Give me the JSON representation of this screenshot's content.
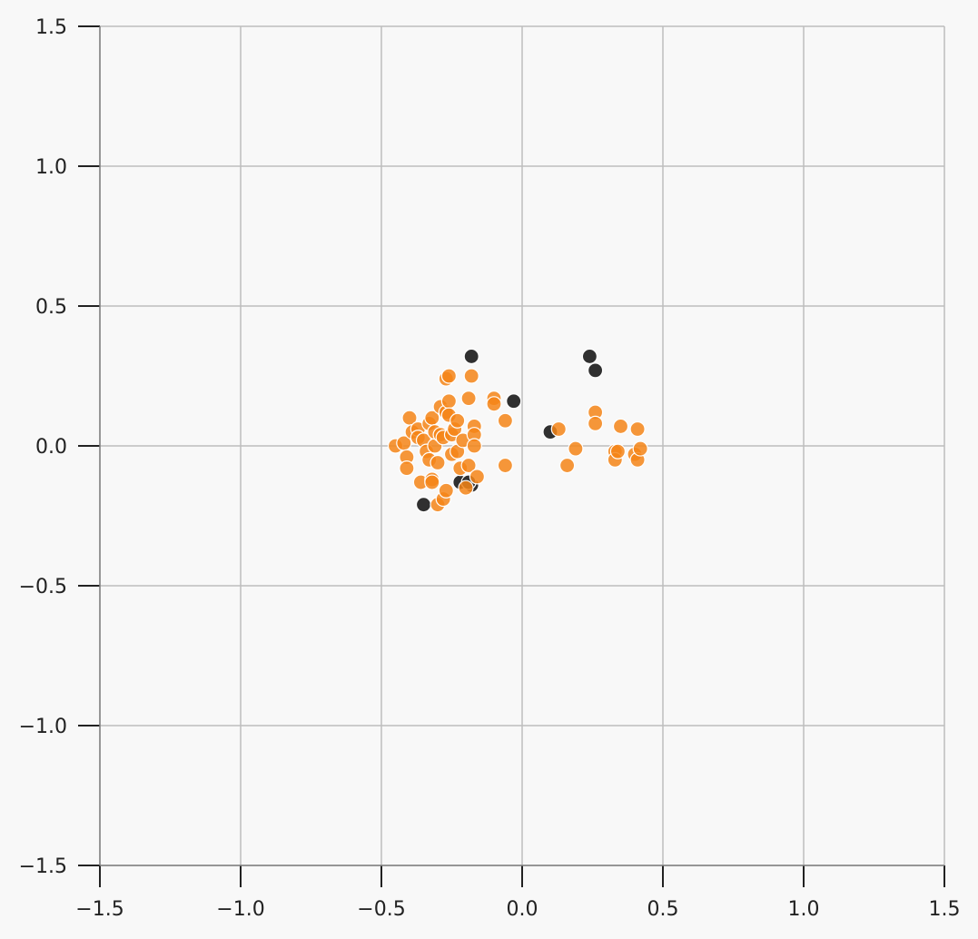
{
  "chart_data": {
    "type": "scatter",
    "title": "",
    "xlabel": "",
    "ylabel": "",
    "xlim": [
      -1.5,
      1.5
    ],
    "ylim": [
      -1.5,
      1.5
    ],
    "grid": true,
    "legend": "none",
    "x_ticks": [
      "−1.5",
      "−1.0",
      "−0.5",
      "0.0",
      "0.5",
      "1.0",
      "1.5"
    ],
    "y_ticks": [
      "−1.5",
      "−1.0",
      "−0.5",
      "0.0",
      "0.5",
      "1.0",
      "1.5"
    ],
    "series": [
      {
        "color": "#303030",
        "points": [
          [
            -0.18,
            0.32
          ],
          [
            0.24,
            0.32
          ],
          [
            0.26,
            0.27
          ],
          [
            -0.03,
            0.16
          ],
          [
            0.1,
            0.05
          ],
          [
            -0.35,
            -0.21
          ],
          [
            -0.22,
            -0.13
          ],
          [
            -0.18,
            -0.14
          ],
          [
            -0.19,
            -0.13
          ]
        ]
      },
      {
        "color": "#f58518",
        "points": [
          [
            -0.45,
            0.0
          ],
          [
            -0.42,
            0.01
          ],
          [
            -0.41,
            -0.04
          ],
          [
            -0.41,
            -0.08
          ],
          [
            -0.4,
            0.1
          ],
          [
            -0.39,
            0.05
          ],
          [
            -0.37,
            0.06
          ],
          [
            -0.37,
            0.03
          ],
          [
            -0.36,
            -0.13
          ],
          [
            -0.35,
            0.02
          ],
          [
            -0.34,
            -0.02
          ],
          [
            -0.33,
            0.08
          ],
          [
            -0.33,
            -0.05
          ],
          [
            -0.32,
            0.1
          ],
          [
            -0.32,
            -0.12
          ],
          [
            -0.32,
            -0.13
          ],
          [
            -0.31,
            0.0
          ],
          [
            -0.31,
            0.05
          ],
          [
            -0.3,
            -0.06
          ],
          [
            -0.3,
            -0.21
          ],
          [
            -0.29,
            0.14
          ],
          [
            -0.29,
            0.04
          ],
          [
            -0.28,
            -0.19
          ],
          [
            -0.28,
            0.03
          ],
          [
            -0.27,
            -0.16
          ],
          [
            -0.27,
            0.24
          ],
          [
            -0.27,
            0.12
          ],
          [
            -0.26,
            0.25
          ],
          [
            -0.26,
            0.16
          ],
          [
            -0.26,
            0.11
          ],
          [
            -0.25,
            0.04
          ],
          [
            -0.25,
            -0.03
          ],
          [
            -0.24,
            0.06
          ],
          [
            -0.23,
            -0.02
          ],
          [
            -0.23,
            0.09
          ],
          [
            -0.22,
            -0.08
          ],
          [
            -0.21,
            0.02
          ],
          [
            -0.2,
            -0.15
          ],
          [
            -0.19,
            -0.07
          ],
          [
            -0.19,
            0.17
          ],
          [
            -0.18,
            0.25
          ],
          [
            -0.17,
            0.07
          ],
          [
            -0.17,
            0.04
          ],
          [
            -0.17,
            0.0
          ],
          [
            -0.16,
            -0.11
          ],
          [
            -0.1,
            0.17
          ],
          [
            -0.1,
            0.15
          ],
          [
            -0.06,
            0.09
          ],
          [
            -0.06,
            -0.07
          ],
          [
            0.13,
            0.06
          ],
          [
            0.16,
            -0.07
          ],
          [
            0.19,
            -0.01
          ],
          [
            0.26,
            0.12
          ],
          [
            0.26,
            0.08
          ],
          [
            0.33,
            -0.02
          ],
          [
            0.33,
            -0.05
          ],
          [
            0.34,
            -0.02
          ],
          [
            0.35,
            0.07
          ],
          [
            0.4,
            -0.03
          ],
          [
            0.41,
            0.06
          ],
          [
            0.41,
            -0.05
          ],
          [
            0.42,
            -0.01
          ]
        ]
      }
    ]
  }
}
